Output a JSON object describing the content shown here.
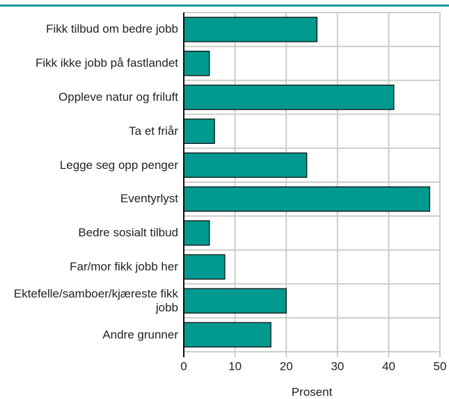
{
  "chart_data": {
    "type": "bar",
    "orientation": "horizontal",
    "categories": [
      "Fikk tilbud om bedre jobb",
      "Fikk ikke jobb på fastlandet",
      "Oppleve natur og friluft",
      "Ta et friår",
      "Legge seg opp penger",
      "Eventyrlyst",
      "Bedre sosialt tilbud",
      "Far/mor fikk jobb her",
      "Ektefelle/samboer/kjæreste fikk jobb",
      "Andre grunner"
    ],
    "values": [
      26,
      5,
      41,
      6,
      24,
      48,
      5,
      8,
      20,
      17
    ],
    "color": "#009990",
    "xlabel": "Prosent",
    "xlim": [
      0,
      50
    ],
    "xticks": [
      0,
      10,
      20,
      30,
      40,
      50
    ],
    "grid": true
  }
}
